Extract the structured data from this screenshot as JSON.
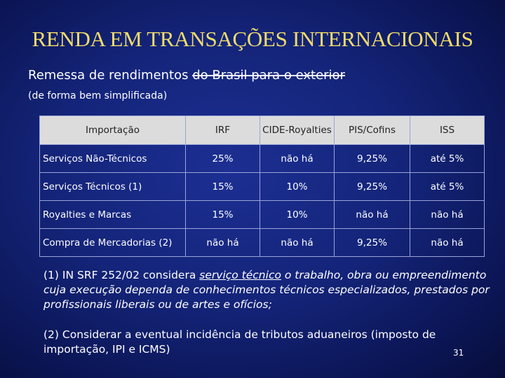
{
  "slide": {
    "title": "RENDA EM TRANSAÇÕES INTERNACIONAIS",
    "subtitle_plain": "Remessa de rendimentos ",
    "subtitle_struck": "do Brasil para o exterior",
    "subnote": "(de forma bem simplificada)",
    "page_number": "31"
  },
  "table": {
    "headers": [
      "Importação",
      "IRF",
      "CIDE-Royalties",
      "PIS/Cofins",
      "ISS"
    ],
    "rows": [
      [
        "Serviços Não-Técnicos",
        "25%",
        "não há",
        "9,25%",
        "até 5%"
      ],
      [
        "Serviços Técnicos (1)",
        "15%",
        "10%",
        "9,25%",
        "até 5%"
      ],
      [
        "Royalties e Marcas",
        "15%",
        "10%",
        "não há",
        "não há"
      ],
      [
        "Compra de Mercadorias (2)",
        "não há",
        "não há",
        "9,25%",
        "não há"
      ]
    ]
  },
  "notes": {
    "note1_lead": "(1) IN SRF 252/02 considera ",
    "note1_term": "serviço técnico",
    "note1_rest": " o trabalho, obra ou empreendimento cuja execução dependa de conhecimentos técnicos especializados, prestados por profissionais liberais ou de artes e ofícios;",
    "note2": "(2) Considerar a eventual incidência de tributos aduaneiros (imposto de importação, IPI e ICMS)"
  }
}
